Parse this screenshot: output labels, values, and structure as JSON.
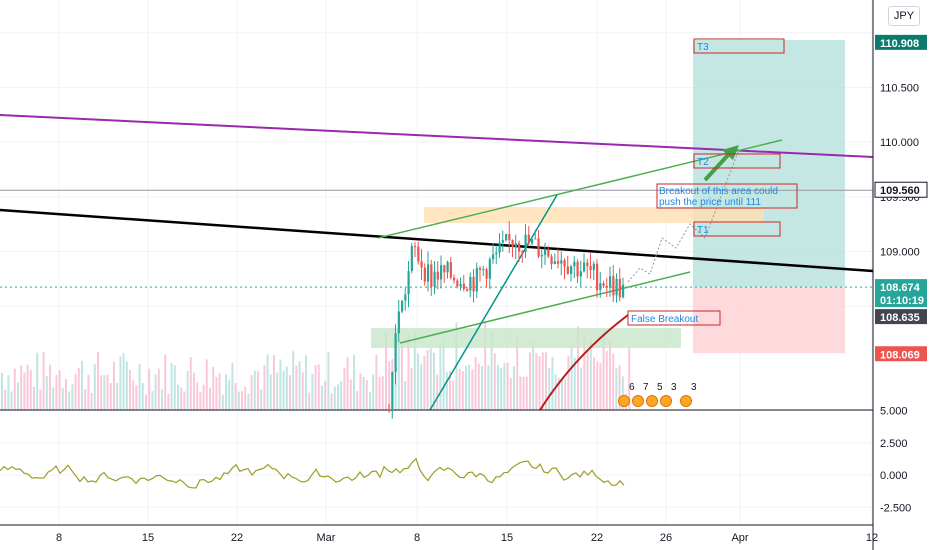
{
  "chart_data": [
    {
      "type": "candlestick",
      "symbol_currency": "JPY",
      "x_axis": {
        "tick_labels": [
          "8",
          "15",
          "22",
          "Mar",
          "8",
          "15",
          "22",
          "26",
          "Apr",
          "12"
        ]
      },
      "y_axis": {
        "range": [
          107.55,
          111.3
        ],
        "tick_labels": [
          "109.000",
          "109.500",
          "110.000",
          "110.500"
        ]
      },
      "grid": true,
      "price_tags": [
        {
          "label": "110.908",
          "value": 110.908,
          "color": "#0d7a6e"
        },
        {
          "label": "109.560",
          "value": 109.56,
          "color": "#ffffff",
          "text_color": "#131722"
        },
        {
          "label": "108.674",
          "value": 108.674,
          "color": "#26a69a"
        },
        {
          "label": "01:10:19",
          "value": 108.674,
          "color": "#26a69a"
        },
        {
          "label": "108.635",
          "value": 108.635,
          "color": "#434651"
        },
        {
          "label": "108.069",
          "value": 108.069,
          "color": "#ef5350"
        }
      ],
      "annotations": {
        "t3": "T3",
        "t2": "T2",
        "t1": "T1",
        "breakout_line1": "Breakout of this area could",
        "breakout_line2": "push the price until 111",
        "false_breakout": "False Breakout"
      },
      "events": [
        "6",
        "7",
        "5",
        "3",
        "3"
      ]
    },
    {
      "type": "line",
      "y_axis": {
        "tick_labels": [
          "5.000",
          "2.500",
          "0.000",
          "-2.500"
        ]
      }
    }
  ],
  "colors": {
    "up": "#26a69a",
    "down": "#ef5350",
    "purple_line": "#9c27b0",
    "channel": "#4caf50",
    "trend_black": "#000000",
    "steep_teal": "#009688",
    "ma_red": "#b71c1c",
    "oscillator": "#9e9d24",
    "target_zone": "#b2dfdb",
    "stop_zone": "#ffcdd2",
    "orange_zone": "#ffe0b2",
    "green_zone": "#c8e6c9"
  }
}
